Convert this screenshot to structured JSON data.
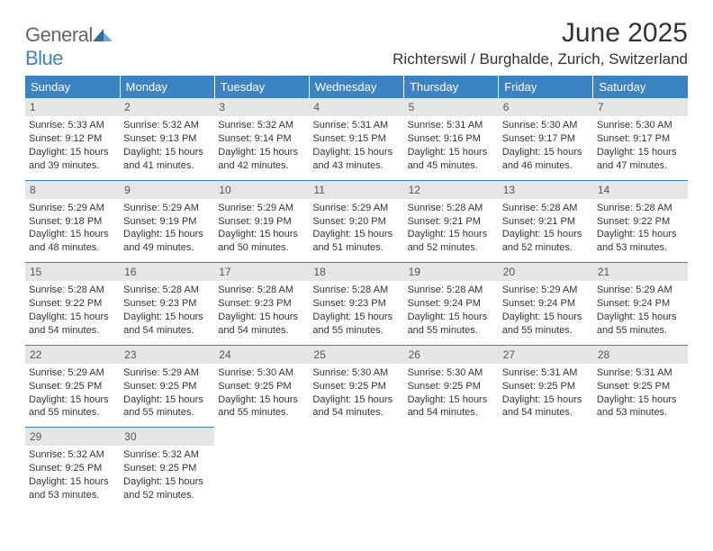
{
  "brand": {
    "general": "General",
    "blue": "Blue"
  },
  "title": "June 2025",
  "location": "Richterswil / Burghalde, Zurich, Switzerland",
  "weekdays": [
    "Sunday",
    "Monday",
    "Tuesday",
    "Wednesday",
    "Thursday",
    "Friday",
    "Saturday"
  ],
  "colors": {
    "header_bg": "#3b84c4",
    "daynum_bg": "#e6e6e6",
    "rule": "#3b84c4"
  },
  "month": {
    "year": 2025,
    "month": 6,
    "start_weekday": 0,
    "days_in_month": 30
  },
  "days": [
    {
      "n": 1,
      "sunrise": "5:33 AM",
      "sunset": "9:12 PM",
      "daylight": "15 hours and 39 minutes."
    },
    {
      "n": 2,
      "sunrise": "5:32 AM",
      "sunset": "9:13 PM",
      "daylight": "15 hours and 41 minutes."
    },
    {
      "n": 3,
      "sunrise": "5:32 AM",
      "sunset": "9:14 PM",
      "daylight": "15 hours and 42 minutes."
    },
    {
      "n": 4,
      "sunrise": "5:31 AM",
      "sunset": "9:15 PM",
      "daylight": "15 hours and 43 minutes."
    },
    {
      "n": 5,
      "sunrise": "5:31 AM",
      "sunset": "9:16 PM",
      "daylight": "15 hours and 45 minutes."
    },
    {
      "n": 6,
      "sunrise": "5:30 AM",
      "sunset": "9:17 PM",
      "daylight": "15 hours and 46 minutes."
    },
    {
      "n": 7,
      "sunrise": "5:30 AM",
      "sunset": "9:17 PM",
      "daylight": "15 hours and 47 minutes."
    },
    {
      "n": 8,
      "sunrise": "5:29 AM",
      "sunset": "9:18 PM",
      "daylight": "15 hours and 48 minutes."
    },
    {
      "n": 9,
      "sunrise": "5:29 AM",
      "sunset": "9:19 PM",
      "daylight": "15 hours and 49 minutes."
    },
    {
      "n": 10,
      "sunrise": "5:29 AM",
      "sunset": "9:19 PM",
      "daylight": "15 hours and 50 minutes."
    },
    {
      "n": 11,
      "sunrise": "5:29 AM",
      "sunset": "9:20 PM",
      "daylight": "15 hours and 51 minutes."
    },
    {
      "n": 12,
      "sunrise": "5:28 AM",
      "sunset": "9:21 PM",
      "daylight": "15 hours and 52 minutes."
    },
    {
      "n": 13,
      "sunrise": "5:28 AM",
      "sunset": "9:21 PM",
      "daylight": "15 hours and 52 minutes."
    },
    {
      "n": 14,
      "sunrise": "5:28 AM",
      "sunset": "9:22 PM",
      "daylight": "15 hours and 53 minutes."
    },
    {
      "n": 15,
      "sunrise": "5:28 AM",
      "sunset": "9:22 PM",
      "daylight": "15 hours and 54 minutes."
    },
    {
      "n": 16,
      "sunrise": "5:28 AM",
      "sunset": "9:23 PM",
      "daylight": "15 hours and 54 minutes."
    },
    {
      "n": 17,
      "sunrise": "5:28 AM",
      "sunset": "9:23 PM",
      "daylight": "15 hours and 54 minutes."
    },
    {
      "n": 18,
      "sunrise": "5:28 AM",
      "sunset": "9:23 PM",
      "daylight": "15 hours and 55 minutes."
    },
    {
      "n": 19,
      "sunrise": "5:28 AM",
      "sunset": "9:24 PM",
      "daylight": "15 hours and 55 minutes."
    },
    {
      "n": 20,
      "sunrise": "5:29 AM",
      "sunset": "9:24 PM",
      "daylight": "15 hours and 55 minutes."
    },
    {
      "n": 21,
      "sunrise": "5:29 AM",
      "sunset": "9:24 PM",
      "daylight": "15 hours and 55 minutes."
    },
    {
      "n": 22,
      "sunrise": "5:29 AM",
      "sunset": "9:25 PM",
      "daylight": "15 hours and 55 minutes."
    },
    {
      "n": 23,
      "sunrise": "5:29 AM",
      "sunset": "9:25 PM",
      "daylight": "15 hours and 55 minutes."
    },
    {
      "n": 24,
      "sunrise": "5:30 AM",
      "sunset": "9:25 PM",
      "daylight": "15 hours and 55 minutes."
    },
    {
      "n": 25,
      "sunrise": "5:30 AM",
      "sunset": "9:25 PM",
      "daylight": "15 hours and 54 minutes."
    },
    {
      "n": 26,
      "sunrise": "5:30 AM",
      "sunset": "9:25 PM",
      "daylight": "15 hours and 54 minutes."
    },
    {
      "n": 27,
      "sunrise": "5:31 AM",
      "sunset": "9:25 PM",
      "daylight": "15 hours and 54 minutes."
    },
    {
      "n": 28,
      "sunrise": "5:31 AM",
      "sunset": "9:25 PM",
      "daylight": "15 hours and 53 minutes."
    },
    {
      "n": 29,
      "sunrise": "5:32 AM",
      "sunset": "9:25 PM",
      "daylight": "15 hours and 53 minutes."
    },
    {
      "n": 30,
      "sunrise": "5:32 AM",
      "sunset": "9:25 PM",
      "daylight": "15 hours and 52 minutes."
    }
  ],
  "labels": {
    "sunrise": "Sunrise:",
    "sunset": "Sunset:",
    "daylight": "Daylight:"
  }
}
